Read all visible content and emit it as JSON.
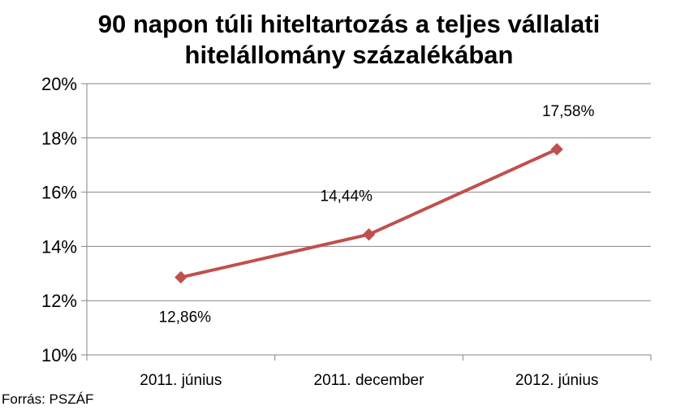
{
  "title_lines": [
    "90 napon túli hiteltartozás a teljes vállalati",
    "hitelállomány százalékában"
  ],
  "source": "Forrás: PSZÁF",
  "colors": {
    "line": "#C0504D",
    "marker": "#C0504D",
    "grid": "#868686",
    "axis": "#868686"
  },
  "chart_data": {
    "type": "line",
    "categories": [
      "2011. június",
      "2011. december",
      "2012. június"
    ],
    "series": [
      {
        "values": [
          12.86,
          14.44,
          17.58
        ],
        "labels": [
          "12,86%",
          "14,44%",
          "17,58%"
        ]
      }
    ],
    "ylim": [
      10,
      20
    ],
    "yticks": [
      10,
      12,
      14,
      16,
      18,
      20
    ],
    "ytick_labels": [
      "10%",
      "12%",
      "14%",
      "16%",
      "18%",
      "20%"
    ],
    "grid": true,
    "marker": "diamond"
  }
}
